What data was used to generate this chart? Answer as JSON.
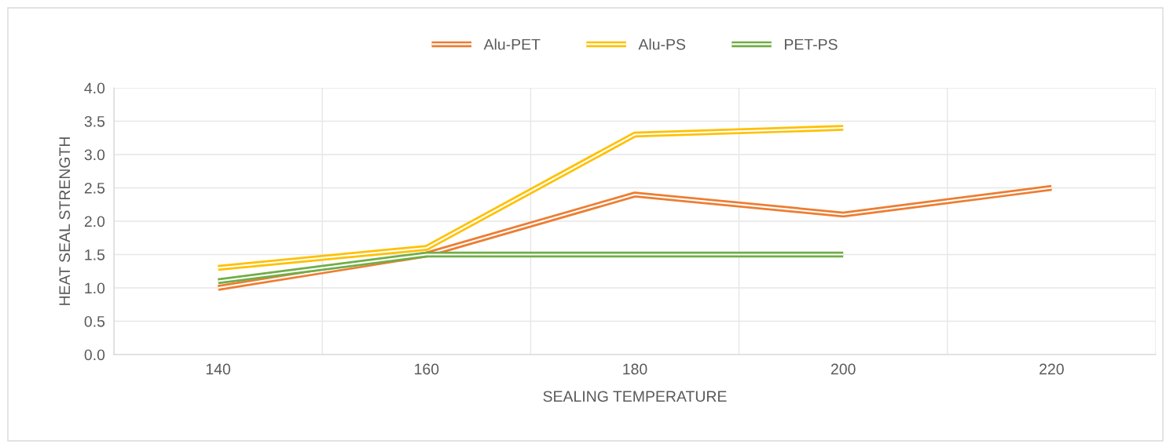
{
  "chart_data": {
    "type": "line",
    "xlabel": "SEALING TEMPERATURE",
    "ylabel": "HEAT SEAL STRENGTH",
    "x": [
      140,
      160,
      180,
      200,
      220
    ],
    "series": [
      {
        "name": "Alu-PET",
        "color": "#ed7d31",
        "values": [
          1.0,
          1.5,
          2.4,
          2.1,
          2.5
        ]
      },
      {
        "name": "Alu-PS",
        "color": "#ffc000",
        "values": [
          1.3,
          1.6,
          3.3,
          3.4,
          null
        ]
      },
      {
        "name": "PET-PS",
        "color": "#70ad47",
        "values": [
          1.1,
          1.5,
          1.5,
          1.5,
          null
        ]
      }
    ],
    "xlim": [
      130,
      230
    ],
    "xticks": [
      {
        "value": 130,
        "label": null
      },
      140,
      {
        "value": 150,
        "label": null
      },
      160,
      {
        "value": 170,
        "label": null
      },
      180,
      {
        "value": 190,
        "label": null
      },
      200,
      {
        "value": 210,
        "label": null
      },
      220,
      {
        "value": 230,
        "label": null
      }
    ],
    "ylim": [
      0,
      4.0
    ],
    "yticks": [
      {
        "value": 0,
        "label": "0.0"
      },
      {
        "value": 0.5,
        "label": "0.5"
      },
      {
        "value": 1.0,
        "label": "1.0"
      },
      {
        "value": 1.5,
        "label": "1.5"
      },
      {
        "value": 2.0,
        "label": "2.0"
      },
      {
        "value": 2.5,
        "label": "2.5"
      },
      {
        "value": 3.0,
        "label": "3.0"
      },
      {
        "value": 3.5,
        "label": "3.5"
      },
      {
        "value": 4.0,
        "label": "4.0"
      }
    ],
    "grid": true,
    "legend": "top",
    "marker": "none",
    "line_style": "solid"
  }
}
